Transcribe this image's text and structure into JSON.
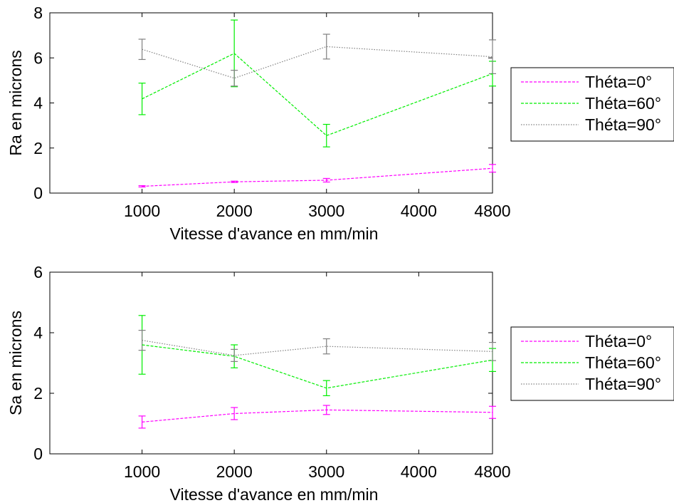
{
  "chart_data": [
    {
      "type": "line",
      "title": "",
      "xlabel": "Vitesse d'avance en mm/min",
      "ylabel": "Ra en microns",
      "xticks": [
        1000,
        2000,
        3000,
        4000,
        4800
      ],
      "xlim": [
        0,
        4800
      ],
      "yticks": [
        0,
        2,
        4,
        6,
        8
      ],
      "ylim": [
        0,
        8
      ],
      "grid": false,
      "legend_position": "outside-right",
      "x": [
        1000,
        2000,
        3000,
        4800
      ],
      "series": [
        {
          "name": "Théta=0°",
          "color": "#ff00ff",
          "dash": "dashed",
          "values": [
            0.3,
            0.5,
            0.57,
            1.1
          ],
          "errors": [
            0.03,
            0.03,
            0.08,
            0.17
          ]
        },
        {
          "name": "Théta=60°",
          "color": "#00ee00",
          "dash": "dashed",
          "values": [
            4.18,
            6.2,
            2.55,
            5.3
          ],
          "errors": [
            0.7,
            1.48,
            0.5,
            0.55
          ]
        },
        {
          "name": "Théta=90°",
          "color": "#808080",
          "dash": "dotted",
          "values": [
            6.38,
            5.1,
            6.5,
            6.05
          ],
          "errors": [
            0.45,
            0.35,
            0.55,
            0.75
          ]
        }
      ]
    },
    {
      "type": "line",
      "title": "",
      "xlabel": "Vitesse d'avance en mm/min",
      "ylabel": "Sa en microns",
      "xticks": [
        1000,
        2000,
        3000,
        4000,
        4800
      ],
      "xlim": [
        0,
        4800
      ],
      "yticks": [
        0,
        2,
        4,
        6
      ],
      "ylim": [
        0,
        6
      ],
      "grid": false,
      "legend_position": "outside-right",
      "x": [
        1000,
        2000,
        3000,
        4800
      ],
      "series": [
        {
          "name": "Théta=0°",
          "color": "#ff00ff",
          "dash": "dashed",
          "values": [
            1.05,
            1.33,
            1.45,
            1.37
          ],
          "errors": [
            0.2,
            0.2,
            0.15,
            0.2
          ]
        },
        {
          "name": "Théta=60°",
          "color": "#00ee00",
          "dash": "dashed",
          "values": [
            3.6,
            3.22,
            2.17,
            3.1
          ],
          "errors": [
            0.97,
            0.38,
            0.25,
            0.38
          ]
        },
        {
          "name": "Théta=90°",
          "color": "#808080",
          "dash": "dotted",
          "values": [
            3.75,
            3.25,
            3.55,
            3.38
          ],
          "errors": [
            0.33,
            0.2,
            0.25,
            0.3
          ]
        }
      ]
    }
  ]
}
